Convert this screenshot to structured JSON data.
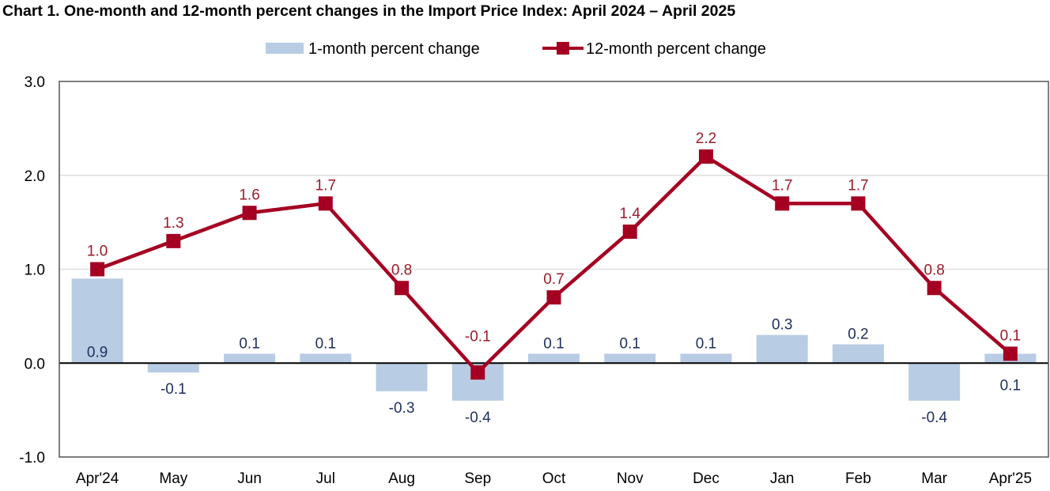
{
  "chart_data": {
    "type": "bar",
    "title": "Chart 1. One-month and 12-month percent changes in the Import Price Index: April 2024 – April 2025",
    "xlabel": "",
    "ylabel": "",
    "ylim": [
      -1.0,
      3.0
    ],
    "yticks": [
      "3.0",
      "2.0",
      "1.0",
      "0.0",
      "-1.0"
    ],
    "ytick_values": [
      3,
      2,
      1,
      0,
      -1
    ],
    "grid": true,
    "legend_position": "top-center",
    "categories": [
      "Apr'24",
      "May",
      "Jun",
      "Jul",
      "Aug",
      "Sep",
      "Oct",
      "Nov",
      "Dec",
      "Jan",
      "Feb",
      "Mar",
      "Apr'25"
    ],
    "series": [
      {
        "name": "1-month percent change",
        "type": "bar",
        "color": "#b8cce4",
        "label_color": "#1f2f5e",
        "values": [
          0.9,
          -0.1,
          0.1,
          0.1,
          -0.3,
          -0.4,
          0.1,
          0.1,
          0.1,
          0.3,
          0.2,
          -0.4,
          0.1
        ],
        "labels": [
          "0.9",
          "-0.1",
          "0.1",
          "0.1",
          "-0.3",
          "-0.4",
          "0.1",
          "0.1",
          "0.1",
          "0.3",
          "0.2",
          "-0.4",
          "0.1"
        ]
      },
      {
        "name": "12-month percent change",
        "type": "line",
        "marker": "square",
        "color": "#a50021",
        "label_color": "#9c1a2a",
        "values": [
          1.0,
          1.3,
          1.6,
          1.7,
          0.8,
          -0.1,
          0.7,
          1.4,
          2.2,
          1.7,
          1.7,
          0.8,
          0.1
        ],
        "labels": [
          "1.0",
          "1.3",
          "1.6",
          "1.7",
          "0.8",
          "-0.1",
          "0.7",
          "1.4",
          "2.2",
          "1.7",
          "1.7",
          "0.8",
          "0.1"
        ]
      }
    ]
  }
}
